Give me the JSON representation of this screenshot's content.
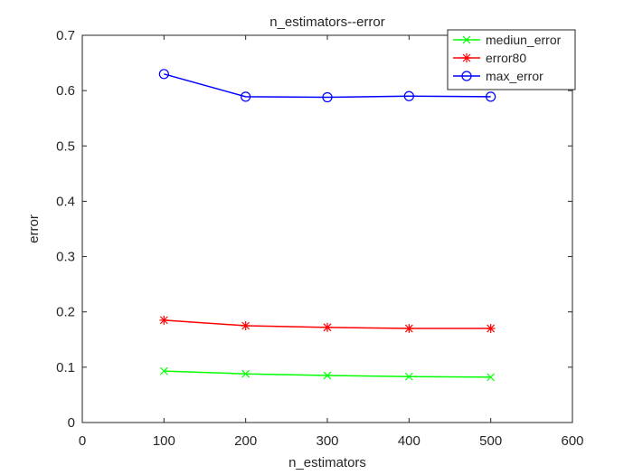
{
  "chart_data": {
    "type": "line",
    "title": "n_estimators--error",
    "xlabel": "n_estimators",
    "ylabel": "error",
    "xlim": [
      0,
      600
    ],
    "ylim": [
      0,
      0.7
    ],
    "xticks": [
      0,
      100,
      200,
      300,
      400,
      500,
      600
    ],
    "yticks": [
      0,
      0.1,
      0.2,
      0.3,
      0.4,
      0.5,
      0.6,
      0.7
    ],
    "xtick_labels": [
      "0",
      "100",
      "200",
      "300",
      "400",
      "500",
      "600"
    ],
    "ytick_labels": [
      "0",
      "0.1",
      "0.2",
      "0.3",
      "0.4",
      "0.5",
      "0.6",
      "0.7"
    ],
    "x": [
      100,
      200,
      300,
      400,
      500
    ],
    "grid": false,
    "legend_position": "top-right",
    "series": [
      {
        "name": "mediun_error",
        "values": [
          0.093,
          0.088,
          0.085,
          0.083,
          0.082
        ],
        "color": "#00ff00",
        "marker": "x"
      },
      {
        "name": "error80",
        "values": [
          0.185,
          0.175,
          0.172,
          0.17,
          0.17
        ],
        "color": "#ff0000",
        "marker": "asterisk"
      },
      {
        "name": "max_error",
        "values": [
          0.63,
          0.589,
          0.588,
          0.59,
          0.589
        ],
        "color": "#0000ff",
        "marker": "circle"
      }
    ]
  }
}
